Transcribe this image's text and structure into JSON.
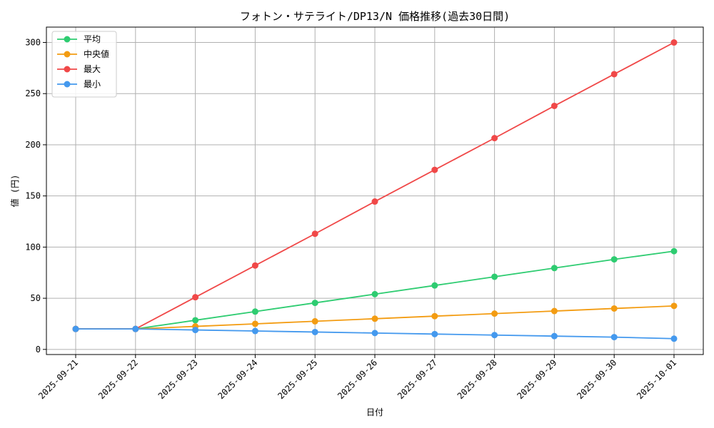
{
  "chart_data": {
    "type": "line",
    "title": "フォトン・サテライト/DP13/N 価格推移(過去30日間)",
    "xlabel": "日付",
    "ylabel": "値 (円)",
    "x": [
      "2025-09-21",
      "2025-09-22",
      "2025-09-23",
      "2025-09-24",
      "2025-09-25",
      "2025-09-26",
      "2025-09-27",
      "2025-09-28",
      "2025-09-29",
      "2025-09-30",
      "2025-10-01"
    ],
    "ylim": [
      -5,
      315
    ],
    "yticks": [
      0,
      50,
      100,
      150,
      200,
      250,
      300
    ],
    "grid": true,
    "legend_position": "top-left",
    "series": [
      {
        "name": "平均",
        "color": "#2ecc71",
        "values": [
          20,
          20,
          28.5,
          37,
          45.5,
          54,
          62.5,
          71,
          79.5,
          88,
          96
        ]
      },
      {
        "name": "中央値",
        "color": "#f39c12",
        "values": [
          20,
          20,
          22.5,
          25,
          27.5,
          30,
          32.5,
          35,
          37.5,
          40,
          42.5
        ]
      },
      {
        "name": "最大",
        "color": "#f04848",
        "values": [
          20,
          20,
          51,
          82,
          113,
          144.5,
          175.5,
          206.5,
          238,
          269,
          300
        ]
      },
      {
        "name": "最小",
        "color": "#4499ee",
        "values": [
          20,
          20,
          19,
          18,
          17,
          16,
          15,
          14,
          13,
          12,
          10.5
        ]
      }
    ]
  }
}
